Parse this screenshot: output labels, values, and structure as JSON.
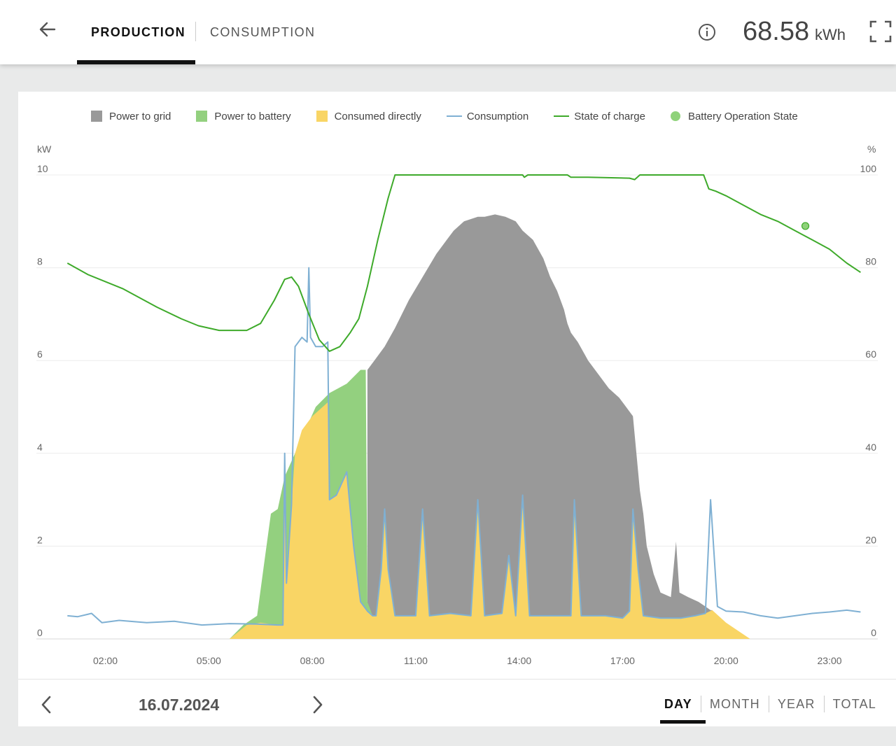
{
  "header": {
    "back_icon": "arrow-left-icon",
    "tabs": [
      {
        "label": "PRODUCTION",
        "active": true
      },
      {
        "label": "CONSUMPTION",
        "active": false
      }
    ],
    "info_icon": "info-circle-icon",
    "total_value": "68.58",
    "total_unit": "kWh",
    "fullscreen_icon": "fullscreen-icon"
  },
  "colors": {
    "grid": "#999999",
    "battery": "#93d07f",
    "direct": "#f9d565",
    "consumption": "#7fb0d3",
    "soc": "#3eaa2a",
    "battery_state": "#8fd27a"
  },
  "chart_data": {
    "type": "area",
    "left_axis_unit": "kW",
    "right_axis_unit": "%",
    "y_ticks": [
      "0",
      "2",
      "4",
      "6",
      "8",
      "10"
    ],
    "y2_ticks": [
      "0",
      "20",
      "40",
      "60",
      "80",
      "100"
    ],
    "x_ticks": [
      "02:00",
      "05:00",
      "08:00",
      "11:00",
      "14:00",
      "17:00",
      "20:00",
      "23:00"
    ],
    "ylim": [
      0,
      10
    ],
    "y2lim": [
      0,
      100
    ],
    "xlim_hours": [
      0,
      24.4
    ],
    "legend": [
      {
        "label": "Power to grid",
        "swatch": "square",
        "color": "#999999"
      },
      {
        "label": "Power to battery",
        "swatch": "square",
        "color": "#93d07f"
      },
      {
        "label": "Consumed directly",
        "swatch": "square",
        "color": "#f9d565"
      },
      {
        "label": "Consumption",
        "swatch": "line",
        "color": "#7fb0d3"
      },
      {
        "label": "State of charge",
        "swatch": "line",
        "color": "#3eaa2a"
      },
      {
        "label": "Battery Operation State",
        "swatch": "dot",
        "color": "#8fd27a"
      }
    ],
    "series": [
      {
        "name": "Consumption",
        "unit": "kW",
        "points": [
          [
            0.9,
            0.5
          ],
          [
            1.2,
            0.48
          ],
          [
            1.6,
            0.55
          ],
          [
            1.9,
            0.35
          ],
          [
            2.4,
            0.4
          ],
          [
            3.2,
            0.35
          ],
          [
            4.0,
            0.38
          ],
          [
            4.8,
            0.3
          ],
          [
            5.6,
            0.33
          ],
          [
            6.4,
            0.32
          ],
          [
            7.0,
            0.3
          ],
          [
            7.15,
            0.3
          ],
          [
            7.2,
            4.0
          ],
          [
            7.25,
            1.2
          ],
          [
            7.4,
            2.9
          ],
          [
            7.5,
            6.3
          ],
          [
            7.7,
            6.5
          ],
          [
            7.85,
            6.4
          ],
          [
            7.9,
            8.0
          ],
          [
            7.95,
            6.5
          ],
          [
            8.1,
            6.3
          ],
          [
            8.3,
            6.3
          ],
          [
            8.45,
            6.4
          ],
          [
            8.5,
            3.0
          ],
          [
            8.7,
            3.1
          ],
          [
            9.0,
            3.6
          ],
          [
            9.2,
            2.0
          ],
          [
            9.4,
            0.8
          ],
          [
            9.6,
            0.6
          ],
          [
            9.75,
            0.5
          ],
          [
            9.85,
            0.5
          ],
          [
            10.0,
            1.5
          ],
          [
            10.1,
            2.8
          ],
          [
            10.2,
            1.5
          ],
          [
            10.4,
            0.5
          ],
          [
            11.0,
            0.5
          ],
          [
            11.2,
            2.8
          ],
          [
            11.4,
            0.5
          ],
          [
            12.0,
            0.55
          ],
          [
            12.6,
            0.5
          ],
          [
            12.8,
            3.0
          ],
          [
            13.0,
            0.5
          ],
          [
            13.5,
            0.55
          ],
          [
            13.7,
            1.8
          ],
          [
            13.9,
            0.5
          ],
          [
            14.1,
            3.1
          ],
          [
            14.3,
            0.5
          ],
          [
            15.0,
            0.5
          ],
          [
            15.5,
            0.5
          ],
          [
            15.6,
            3.0
          ],
          [
            15.8,
            0.5
          ],
          [
            16.5,
            0.5
          ],
          [
            17.0,
            0.45
          ],
          [
            17.2,
            0.6
          ],
          [
            17.3,
            2.8
          ],
          [
            17.45,
            1.5
          ],
          [
            17.6,
            0.5
          ],
          [
            18.1,
            0.45
          ],
          [
            18.7,
            0.45
          ],
          [
            19.1,
            0.5
          ],
          [
            19.4,
            0.55
          ],
          [
            19.55,
            3.0
          ],
          [
            19.75,
            0.7
          ],
          [
            20.0,
            0.6
          ],
          [
            20.5,
            0.58
          ],
          [
            21.0,
            0.5
          ],
          [
            21.5,
            0.45
          ],
          [
            22.0,
            0.5
          ],
          [
            22.5,
            0.55
          ],
          [
            23.0,
            0.58
          ],
          [
            23.5,
            0.62
          ],
          [
            23.9,
            0.58
          ]
        ]
      },
      {
        "name": "Consumed directly",
        "unit": "kW",
        "points": [
          [
            5.6,
            0
          ],
          [
            6.1,
            0.3
          ],
          [
            6.5,
            0.35
          ],
          [
            7.0,
            0.3
          ],
          [
            7.15,
            0.3
          ],
          [
            7.2,
            4.0
          ],
          [
            7.25,
            1.2
          ],
          [
            7.4,
            2.9
          ],
          [
            7.5,
            4.0
          ],
          [
            7.7,
            4.5
          ],
          [
            8.0,
            4.8
          ],
          [
            8.45,
            5.1
          ],
          [
            8.5,
            3.0
          ],
          [
            8.7,
            3.1
          ],
          [
            9.0,
            3.6
          ],
          [
            9.2,
            2.0
          ],
          [
            9.4,
            0.8
          ],
          [
            9.6,
            0.6
          ],
          [
            9.75,
            0.5
          ],
          [
            9.85,
            0.5
          ],
          [
            10.0,
            1.5
          ],
          [
            10.1,
            2.8
          ],
          [
            10.2,
            1.5
          ],
          [
            10.4,
            0.5
          ],
          [
            11.0,
            0.5
          ],
          [
            11.2,
            2.8
          ],
          [
            11.4,
            0.5
          ],
          [
            12.0,
            0.55
          ],
          [
            12.6,
            0.5
          ],
          [
            12.8,
            3.0
          ],
          [
            13.0,
            0.5
          ],
          [
            13.5,
            0.55
          ],
          [
            13.7,
            1.8
          ],
          [
            13.9,
            0.5
          ],
          [
            14.1,
            3.1
          ],
          [
            14.3,
            0.5
          ],
          [
            15.0,
            0.5
          ],
          [
            15.5,
            0.5
          ],
          [
            15.6,
            3.0
          ],
          [
            15.8,
            0.5
          ],
          [
            16.5,
            0.5
          ],
          [
            17.0,
            0.45
          ],
          [
            17.2,
            0.6
          ],
          [
            17.3,
            2.8
          ],
          [
            17.45,
            1.5
          ],
          [
            17.6,
            0.5
          ],
          [
            18.1,
            0.45
          ],
          [
            18.7,
            0.45
          ],
          [
            19.1,
            0.5
          ],
          [
            19.4,
            0.55
          ],
          [
            19.6,
            0.62
          ],
          [
            20.0,
            0.35
          ],
          [
            20.3,
            0.2
          ],
          [
            20.7,
            0
          ]
        ]
      },
      {
        "name": "Power to battery",
        "unit": "kW",
        "points": [
          [
            5.6,
            0
          ],
          [
            6.0,
            0.3
          ],
          [
            6.4,
            0.5
          ],
          [
            6.6,
            1.6
          ],
          [
            6.8,
            2.7
          ],
          [
            7.0,
            2.8
          ],
          [
            7.2,
            3.5
          ],
          [
            7.5,
            4.0
          ],
          [
            7.8,
            4.5
          ],
          [
            8.1,
            5.0
          ],
          [
            8.5,
            5.3
          ],
          [
            9.0,
            5.5
          ],
          [
            9.4,
            5.8
          ],
          [
            9.55,
            5.8
          ],
          [
            9.6,
            0.8
          ],
          [
            9.75,
            0.5
          ]
        ]
      },
      {
        "name": "Power to grid",
        "unit": "kW",
        "points": [
          [
            9.6,
            5.8
          ],
          [
            9.8,
            6.0
          ],
          [
            10.1,
            6.3
          ],
          [
            10.4,
            6.7
          ],
          [
            10.8,
            7.3
          ],
          [
            11.2,
            7.8
          ],
          [
            11.6,
            8.3
          ],
          [
            11.9,
            8.6
          ],
          [
            12.1,
            8.8
          ],
          [
            12.4,
            9.0
          ],
          [
            12.8,
            9.1
          ],
          [
            13.0,
            9.1
          ],
          [
            13.3,
            9.15
          ],
          [
            13.6,
            9.1
          ],
          [
            13.9,
            9.0
          ],
          [
            14.1,
            8.8
          ],
          [
            14.4,
            8.6
          ],
          [
            14.7,
            8.2
          ],
          [
            14.9,
            7.8
          ],
          [
            15.1,
            7.5
          ],
          [
            15.3,
            7.1
          ],
          [
            15.4,
            6.8
          ],
          [
            15.5,
            6.6
          ],
          [
            15.7,
            6.4
          ],
          [
            16.0,
            6.0
          ],
          [
            16.3,
            5.7
          ],
          [
            16.6,
            5.4
          ],
          [
            16.9,
            5.2
          ],
          [
            17.1,
            5.0
          ],
          [
            17.3,
            4.8
          ],
          [
            17.5,
            3.2
          ],
          [
            17.6,
            2.7
          ],
          [
            17.7,
            2.0
          ],
          [
            17.9,
            1.4
          ],
          [
            18.1,
            1.0
          ],
          [
            18.4,
            0.9
          ],
          [
            18.55,
            2.1
          ],
          [
            18.65,
            1.0
          ],
          [
            18.9,
            0.9
          ],
          [
            19.2,
            0.8
          ],
          [
            19.4,
            0.7
          ],
          [
            19.55,
            0.62
          ],
          [
            19.6,
            0.62
          ]
        ]
      },
      {
        "name": "State of charge",
        "unit": "%",
        "points": [
          [
            0.9,
            81
          ],
          [
            1.5,
            78.5
          ],
          [
            2.5,
            75.5
          ],
          [
            3.5,
            71.5
          ],
          [
            4.2,
            69
          ],
          [
            4.7,
            67.5
          ],
          [
            5.3,
            66.5
          ],
          [
            6.1,
            66.5
          ],
          [
            6.5,
            68
          ],
          [
            6.9,
            73
          ],
          [
            7.2,
            77.5
          ],
          [
            7.4,
            78
          ],
          [
            7.6,
            76
          ],
          [
            7.9,
            70
          ],
          [
            8.2,
            64.5
          ],
          [
            8.5,
            62
          ],
          [
            8.8,
            63
          ],
          [
            9.1,
            66
          ],
          [
            9.35,
            69
          ],
          [
            9.6,
            76
          ],
          [
            9.9,
            86
          ],
          [
            10.2,
            95
          ],
          [
            10.4,
            100
          ],
          [
            14.1,
            100
          ],
          [
            14.15,
            99.5
          ],
          [
            14.25,
            100
          ],
          [
            15.4,
            100
          ],
          [
            15.5,
            99.5
          ],
          [
            16.0,
            99.5
          ],
          [
            17.2,
            99.3
          ],
          [
            17.35,
            99
          ],
          [
            17.5,
            100
          ],
          [
            19.35,
            100
          ],
          [
            19.5,
            97
          ],
          [
            19.7,
            96.5
          ],
          [
            20.0,
            95.5
          ],
          [
            20.5,
            93.5
          ],
          [
            21.0,
            91.5
          ],
          [
            21.5,
            90
          ],
          [
            22.0,
            88
          ],
          [
            22.5,
            86
          ],
          [
            23.0,
            84
          ],
          [
            23.5,
            81
          ],
          [
            23.9,
            79
          ]
        ]
      }
    ],
    "battery_operation_points": [
      [
        22.3,
        89
      ]
    ]
  },
  "footer": {
    "prev_icon": "chevron-left-icon",
    "date": "16.07.2024",
    "next_icon": "chevron-right-icon",
    "ranges": [
      {
        "label": "DAY",
        "active": true
      },
      {
        "label": "MONTH",
        "active": false
      },
      {
        "label": "YEAR",
        "active": false
      },
      {
        "label": "TOTAL",
        "active": false
      }
    ]
  }
}
